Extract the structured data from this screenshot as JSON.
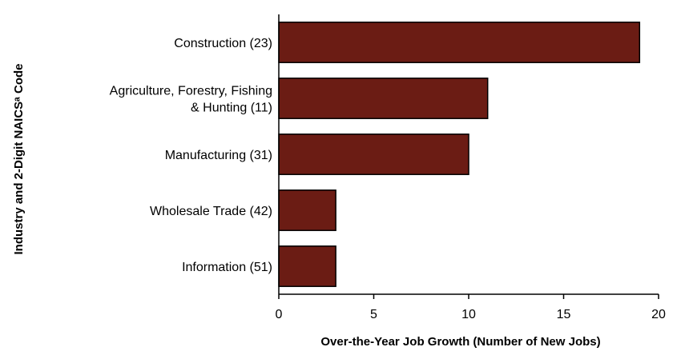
{
  "chart_data": {
    "type": "bar",
    "orientation": "horizontal",
    "title": "",
    "categories": [
      "Construction (23)",
      "Agriculture, Forestry, Fishing & Hunting (11)",
      "Manufacturing (31)",
      "Wholesale Trade (42)",
      "Information (51)"
    ],
    "category_lines": [
      [
        "Construction (23)"
      ],
      [
        "Agriculture, Forestry, Fishing",
        "& Hunting (11)"
      ],
      [
        "Manufacturing (31)"
      ],
      [
        "Wholesale Trade (42)"
      ],
      [
        "Information (51)"
      ]
    ],
    "values": [
      19,
      11,
      10,
      3,
      3
    ],
    "xlabel": "Over-the-Year Job Growth (Number of New Jobs)",
    "ylabel": "Industry and 2-Digit NAICSᵃ Code",
    "xlim": [
      0,
      20
    ],
    "xticks": [
      0,
      5,
      10,
      15,
      20
    ],
    "grid": false,
    "legend": "none",
    "colors": {
      "bar": "#6b1c14",
      "axis": "#000000"
    }
  }
}
